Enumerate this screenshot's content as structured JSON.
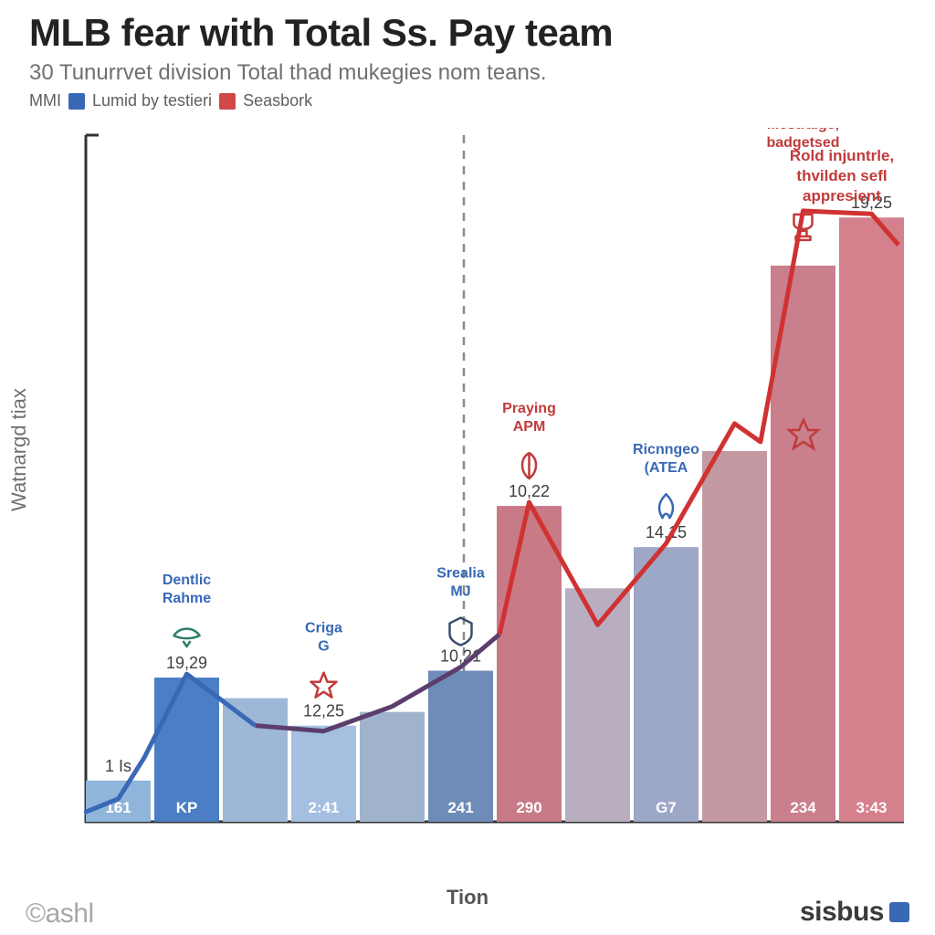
{
  "title": "MLB fear with Total Ss. Pay team",
  "subtitle": "30 Tunurrvet division Total thad mukegies nom teans.",
  "legend": {
    "prefix": "MMI",
    "item1_label": "Lumid by testieri",
    "item1_color": "#3968b6",
    "item2_label": "Seasbork",
    "item2_color": "#d14848"
  },
  "axes": {
    "y_label": "Watnargd tiax",
    "x_label": "Tion",
    "y_top_tick": "4",
    "y_bottom_tick": "0",
    "axis_color": "#333333",
    "divider_color": "#8a8a8a"
  },
  "bars": [
    {
      "x_label": "161",
      "h": 0.06,
      "fill": "#8fb6da",
      "value": "1 Is"
    },
    {
      "x_label": "KP",
      "h": 0.21,
      "fill": "#4b7ec4",
      "value": "19,29",
      "team": "Dentlic Rahme",
      "team_color": "#3968b6",
      "icon": "wing",
      "icon_color": "#2e7b6a"
    },
    {
      "x_label": "",
      "h": 0.18,
      "fill": "#9db7d7"
    },
    {
      "x_label": "2:41",
      "h": 0.14,
      "fill": "#a4bfdf",
      "value": "12,25",
      "team": "Criga G",
      "team_color": "#3968b6",
      "icon": "star",
      "icon_color": "#c23a3a"
    },
    {
      "x_label": "",
      "h": 0.16,
      "fill": "#a0b3cc"
    },
    {
      "x_label": "241",
      "h": 0.22,
      "fill": "#6e8cb8",
      "value": "10,21",
      "team": "Srealia MJ",
      "team_color": "#3968b6",
      "icon": "shield",
      "icon_color": "#3b4f6e"
    },
    {
      "x_label": "290",
      "h": 0.46,
      "fill": "#c87a86",
      "value": "10,22",
      "team": "Praying APM",
      "team_color": "#c23a3a",
      "icon": "leaf",
      "icon_color": "#c23a3a"
    },
    {
      "x_label": "",
      "h": 0.34,
      "fill": "#b9adc0"
    },
    {
      "x_label": "G7",
      "h": 0.4,
      "fill": "#9da7c6",
      "value": "14,15",
      "team": "Ricnngeo (ATEA",
      "team_color": "#3968b6",
      "icon": "flame",
      "icon_color": "#3968b6"
    },
    {
      "x_label": "",
      "h": 0.54,
      "fill": "#c49aa2"
    },
    {
      "x_label": "234",
      "h": 0.81,
      "fill": "#c97f8c",
      "team2": "Mestraige, badgetsed",
      "team2_color": "#c23a3a",
      "icon": "trophy",
      "icon_color": "#c23a3a"
    },
    {
      "x_label": "3:43",
      "h": 0.88,
      "fill": "#d5808d",
      "value": "19,25"
    }
  ],
  "annotation": {
    "l1": "Rold injuntrle,",
    "l2": "thvilden sefl",
    "l3": "appresient"
  },
  "lines": {
    "blue_color": "#3968b6",
    "purple_color": "#5c3e6e",
    "red_color": "#d03232",
    "stroke_width": 5
  },
  "footer": {
    "left": "©ashl",
    "right": "sisbus"
  },
  "style": {
    "background": "#ffffff"
  }
}
